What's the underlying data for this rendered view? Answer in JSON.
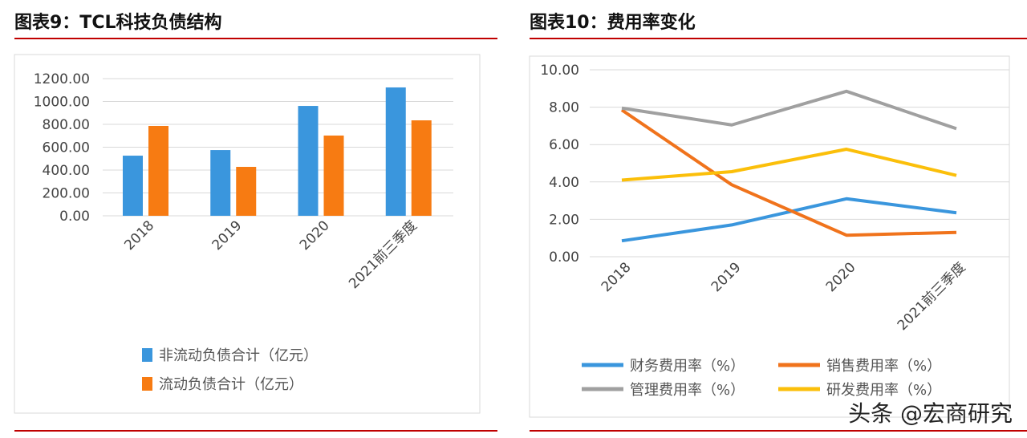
{
  "left_title": "图表9：TCL科技负债结构",
  "right_title": "图表10：费用率变化",
  "watermark": "头条 @宏商研究",
  "chart_data": [
    {
      "type": "bar",
      "categories": [
        "2018",
        "2019",
        "2020",
        "2021前三季度"
      ],
      "ylim": [
        0,
        1200
      ],
      "yticks": [
        "0.00",
        "200.00",
        "400.00",
        "600.00",
        "800.00",
        "1000.00",
        "1200.00"
      ],
      "grid": true,
      "legend": "bottom",
      "series": [
        {
          "name": "非流动负债合计（亿元）",
          "color": "#3a96dd",
          "values": [
            526,
            575,
            961,
            1123
          ]
        },
        {
          "name": "流动负债合计（亿元）",
          "color": "#f77b12",
          "values": [
            786,
            428,
            702,
            835
          ]
        }
      ]
    },
    {
      "type": "line",
      "categories": [
        "2018",
        "2019",
        "2020",
        "2021前三季度"
      ],
      "ylim": [
        0,
        10
      ],
      "yticks": [
        "0.00",
        "2.00",
        "4.00",
        "6.00",
        "8.00",
        "10.00"
      ],
      "grid": true,
      "legend": "bottom",
      "series": [
        {
          "name": "财务费用率（%）",
          "color": "#3a96dd",
          "values": [
            0.85,
            1.7,
            3.1,
            2.35
          ]
        },
        {
          "name": "销售费用率（%）",
          "color": "#f0731c",
          "values": [
            7.85,
            3.85,
            1.15,
            1.3
          ]
        },
        {
          "name": "管理费用率（%）",
          "color": "#a0a0a0",
          "values": [
            7.95,
            7.05,
            8.85,
            6.85
          ]
        },
        {
          "name": "研发费用率（%）",
          "color": "#fbbf0a",
          "values": [
            4.1,
            4.55,
            5.75,
            4.35
          ]
        }
      ]
    }
  ]
}
